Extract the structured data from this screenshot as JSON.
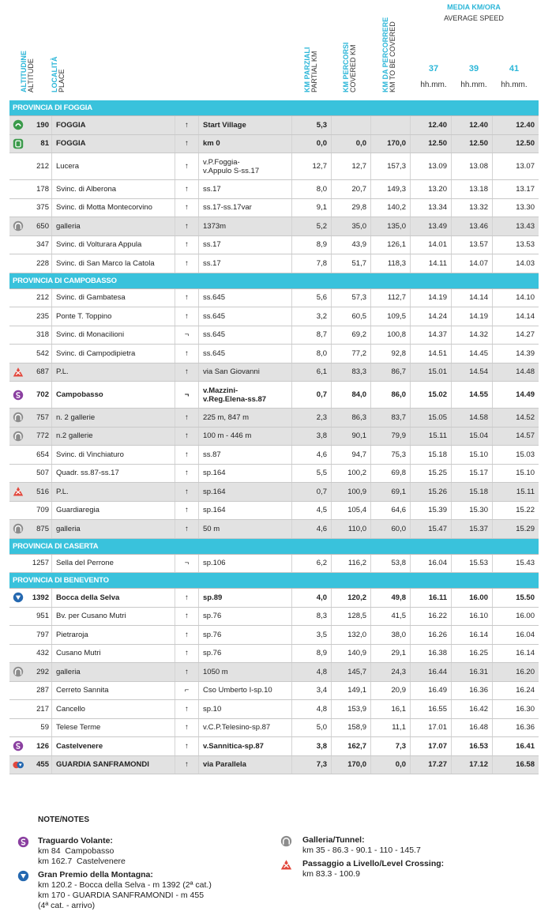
{
  "header": {
    "columns": [
      {
        "title": "ALTITUDINE",
        "subtitle": "ALTITUDE"
      },
      {
        "title": "LOCALITÀ",
        "subtitle": "PLACE"
      },
      {
        "title": "KM PARZIALI",
        "subtitle": "PARTIAL KM"
      },
      {
        "title": "KM PERCORSI",
        "subtitle": "COVERED KM"
      },
      {
        "title": "KM DA PERCORRERE",
        "subtitle": "KM TO BE COVERED"
      }
    ],
    "speed": {
      "title": "MEDIA KM/ORA",
      "subtitle": "AVERAGE SPEED",
      "speeds": [
        37,
        39,
        41
      ],
      "units": [
        "hh.mm.",
        "hh.mm.",
        "hh.mm."
      ]
    }
  },
  "table": {
    "sections": [
      {
        "title": "PROVINCIA DI FOGGIA",
        "rows": [
          {
            "icon": "start",
            "alt": "190",
            "place": "FOGGIA",
            "dir": "↑",
            "road": "Start Village",
            "km": [
              "5,3"
            ],
            "times": [
              "12.40",
              "12.40",
              "12.40"
            ],
            "bold": true
          },
          {
            "icon": "km0",
            "alt": "81",
            "place": "FOGGIA",
            "dir": "↑",
            "road": "km 0",
            "km": [
              "0,0",
              "0,0",
              "170,0"
            ],
            "times": [
              "12.50",
              "12.50",
              "12.50"
            ],
            "bold": true
          },
          {
            "alt": "212",
            "place": "Lucera",
            "dir": "↑",
            "road": "v.P.Foggia-\nv.Appulo S-ss.17",
            "km": [
              "12,7",
              "12,7",
              "157,3"
            ],
            "times": [
              "13.09",
              "13.08",
              "13.07"
            ]
          },
          {
            "alt": "178",
            "place": "Svinc. di Alberona",
            "dir": "↑",
            "road": "ss.17",
            "km": [
              "8,0",
              "20,7",
              "149,3"
            ],
            "times": [
              "13.20",
              "13.18",
              "13.17"
            ]
          },
          {
            "alt": "375",
            "place": "Svinc. di Motta Montecorvino",
            "dir": "↑",
            "road": "ss.17-ss.17var",
            "km": [
              "9,1",
              "29,8",
              "140,2"
            ],
            "times": [
              "13.34",
              "13.32",
              "13.30"
            ]
          },
          {
            "icon": "tunnel",
            "alt": "650",
            "place": "galleria",
            "dir": "↑",
            "road": "1373m",
            "km": [
              "5,2",
              "35,0",
              "135,0"
            ],
            "times": [
              "13.49",
              "13.46",
              "13.43"
            ]
          },
          {
            "alt": "347",
            "place": "Svinc. di Volturara Appula",
            "dir": "↑",
            "road": "ss.17",
            "km": [
              "8,9",
              "43,9",
              "126,1"
            ],
            "times": [
              "14.01",
              "13.57",
              "13.53"
            ]
          },
          {
            "alt": "228",
            "place": "Svinc. di San Marco la Catola",
            "dir": "↑",
            "road": "ss.17",
            "km": [
              "7,8",
              "51,7",
              "118,3"
            ],
            "times": [
              "14.11",
              "14.07",
              "14.03"
            ]
          }
        ]
      },
      {
        "title": "PROVINCIA DI CAMPOBASSO",
        "rows": [
          {
            "alt": "212",
            "place": "Svinc. di Gambatesa",
            "dir": "↑",
            "road": "ss.645",
            "km": [
              "5,6",
              "57,3",
              "112,7"
            ],
            "times": [
              "14.19",
              "14.14",
              "14.10"
            ]
          },
          {
            "alt": "235",
            "place": "Ponte T. Toppino",
            "dir": "↑",
            "road": "ss.645",
            "km": [
              "3,2",
              "60,5",
              "109,5"
            ],
            "times": [
              "14.24",
              "14.19",
              "14.14"
            ]
          },
          {
            "alt": "318",
            "place": "Svinc. di Monacilioni",
            "dir": "¬",
            "road": "ss.645",
            "km": [
              "8,7",
              "69,2",
              "100,8"
            ],
            "times": [
              "14.37",
              "14.32",
              "14.27"
            ]
          },
          {
            "alt": "542",
            "place": "Svinc. di Campodipietra",
            "dir": "↑",
            "road": "ss.645",
            "km": [
              "8,0",
              "77,2",
              "92,8"
            ],
            "times": [
              "14.51",
              "14.45",
              "14.39"
            ]
          },
          {
            "icon": "crossing",
            "alt": "687",
            "place": "P.L.",
            "dir": "↑",
            "road": "via San Giovanni",
            "km": [
              "6,1",
              "83,3",
              "86,7"
            ],
            "times": [
              "15.01",
              "14.54",
              "14.48"
            ]
          },
          {
            "icon": "sprint",
            "alt": "702",
            "place": "Campobasso",
            "dir": "¬",
            "road": "v.Mazzini-\nv.Reg.Elena-ss.87",
            "km": [
              "0,7",
              "84,0",
              "86,0"
            ],
            "times": [
              "15.02",
              "14.55",
              "14.49"
            ],
            "bold": true
          },
          {
            "icon": "tunnel",
            "alt": "757",
            "place": "n. 2 gallerie",
            "dir": "↑",
            "road": "225 m, 847 m",
            "km": [
              "2,3",
              "86,3",
              "83,7"
            ],
            "times": [
              "15.05",
              "14.58",
              "14.52"
            ]
          },
          {
            "icon": "tunnel",
            "alt": "772",
            "place": "n.2 gallerie",
            "dir": "↑",
            "road": "100 m - 446 m",
            "km": [
              "3,8",
              "90,1",
              "79,9"
            ],
            "times": [
              "15.11",
              "15.04",
              "14.57"
            ]
          },
          {
            "alt": "654",
            "place": "Svinc. di Vinchiaturo",
            "dir": "↑",
            "road": "ss.87",
            "km": [
              "4,6",
              "94,7",
              "75,3"
            ],
            "times": [
              "15.18",
              "15.10",
              "15.03"
            ]
          },
          {
            "alt": "507",
            "place": "Quadr. ss.87-ss.17",
            "dir": "↑",
            "road": "sp.164",
            "km": [
              "5,5",
              "100,2",
              "69,8"
            ],
            "times": [
              "15.25",
              "15.17",
              "15.10"
            ]
          },
          {
            "icon": "crossing",
            "alt": "516",
            "place": "P.L.",
            "dir": "↑",
            "road": "sp.164",
            "km": [
              "0,7",
              "100,9",
              "69,1"
            ],
            "times": [
              "15.26",
              "15.18",
              "15.11"
            ]
          },
          {
            "alt": "709",
            "place": "Guardiaregia",
            "dir": "↑",
            "road": "sp.164",
            "km": [
              "4,5",
              "105,4",
              "64,6"
            ],
            "times": [
              "15.39",
              "15.30",
              "15.22"
            ]
          },
          {
            "icon": "tunnel",
            "alt": "875",
            "place": "galleria",
            "dir": "↑",
            "road": "50 m",
            "km": [
              "4,6",
              "110,0",
              "60,0"
            ],
            "times": [
              "15.47",
              "15.37",
              "15.29"
            ]
          }
        ]
      },
      {
        "title": "PROVINCIA DI CASERTA",
        "rows": [
          {
            "alt": "1257",
            "place": "Sella del Perrone",
            "dir": "¬",
            "road": "sp.106",
            "km": [
              "6,2",
              "116,2",
              "53,8"
            ],
            "times": [
              "16.04",
              "15.53",
              "15.43"
            ]
          }
        ]
      },
      {
        "title": "PROVINCIA DI BENEVENTO",
        "rows": [
          {
            "icon": "gpm",
            "alt": "1392",
            "place": "Bocca della Selva",
            "dir": "↑",
            "road": "sp.89",
            "km": [
              "4,0",
              "120,2",
              "49,8"
            ],
            "times": [
              "16.11",
              "16.00",
              "15.50"
            ],
            "bold": true
          },
          {
            "alt": "951",
            "place": "Bv. per Cusano Mutri",
            "dir": "↑",
            "road": "sp.76",
            "km": [
              "8,3",
              "128,5",
              "41,5"
            ],
            "times": [
              "16.22",
              "16.10",
              "16.00"
            ]
          },
          {
            "alt": "797",
            "place": "Pietraroja",
            "dir": "↑",
            "road": "sp.76",
            "km": [
              "3,5",
              "132,0",
              "38,0"
            ],
            "times": [
              "16.26",
              "16.14",
              "16.04"
            ]
          },
          {
            "alt": "432",
            "place": "Cusano Mutri",
            "dir": "↑",
            "road": "sp.76",
            "km": [
              "8,9",
              "140,9",
              "29,1"
            ],
            "times": [
              "16.38",
              "16.25",
              "16.14"
            ]
          },
          {
            "icon": "tunnel",
            "alt": "292",
            "place": "galleria",
            "dir": "↑",
            "road": "1050 m",
            "km": [
              "4,8",
              "145,7",
              "24,3"
            ],
            "times": [
              "16.44",
              "16.31",
              "16.20"
            ]
          },
          {
            "alt": "287",
            "place": "Cerreto Sannita",
            "dir": "⌐",
            "road": "Cso Umberto I-sp.10",
            "km": [
              "3,4",
              "149,1",
              "20,9"
            ],
            "times": [
              "16.49",
              "16.36",
              "16.24"
            ]
          },
          {
            "alt": "217",
            "place": "Cancello",
            "dir": "↑",
            "road": "sp.10",
            "km": [
              "4,8",
              "153,9",
              "16,1"
            ],
            "times": [
              "16.55",
              "16.42",
              "16.30"
            ]
          },
          {
            "alt": "59",
            "place": "Telese Terme",
            "dir": "↑",
            "road": "v.C.P.Telesino-sp.87",
            "km": [
              "5,0",
              "158,9",
              "11,1"
            ],
            "times": [
              "17.01",
              "16.48",
              "16.36"
            ]
          },
          {
            "icon": "sprint",
            "alt": "126",
            "place": "Castelvenere",
            "dir": "↑",
            "road": "v.Sannitica-sp.87",
            "km": [
              "3,8",
              "162,7",
              "7,3"
            ],
            "times": [
              "17.07",
              "16.53",
              "16.41"
            ],
            "bold": true
          },
          {
            "icon": "finish",
            "alt": "455",
            "place": "GUARDIA SANFRAMONDI",
            "dir": "↑",
            "road": "via Parallela",
            "km": [
              "7,3",
              "170,0",
              "0,0"
            ],
            "times": [
              "17.27",
              "17.12",
              "16.58"
            ],
            "bold": true
          }
        ]
      }
    ]
  },
  "notes": {
    "title": "NOTE/NOTES",
    "items": [
      {
        "icon": "sprint",
        "title": "Traguardo Volante:",
        "lines": [
          "km 84  Campobasso",
          "km 162.7  Castelvenere"
        ]
      },
      {
        "icon": "gpm",
        "title": "Gran Premio della Montagna:",
        "lines": [
          "km 120.2 - Bocca della Selva - m 1392 (2ª cat.)",
          "km 170 - GUARDIA SANFRAMONDI - m 455",
          "(4ª cat. - arrivo)"
        ]
      },
      {
        "icon": "tunnel",
        "title": "Galleria/Tunnel:",
        "lines": [
          "km 35 - 86.3 - 90.1 - 110 - 145.7"
        ]
      },
      {
        "icon": "crossing",
        "title": "Passaggio a Livello/Level Crossing:",
        "lines": [
          "km 83.3 - 100.9"
        ]
      }
    ]
  }
}
